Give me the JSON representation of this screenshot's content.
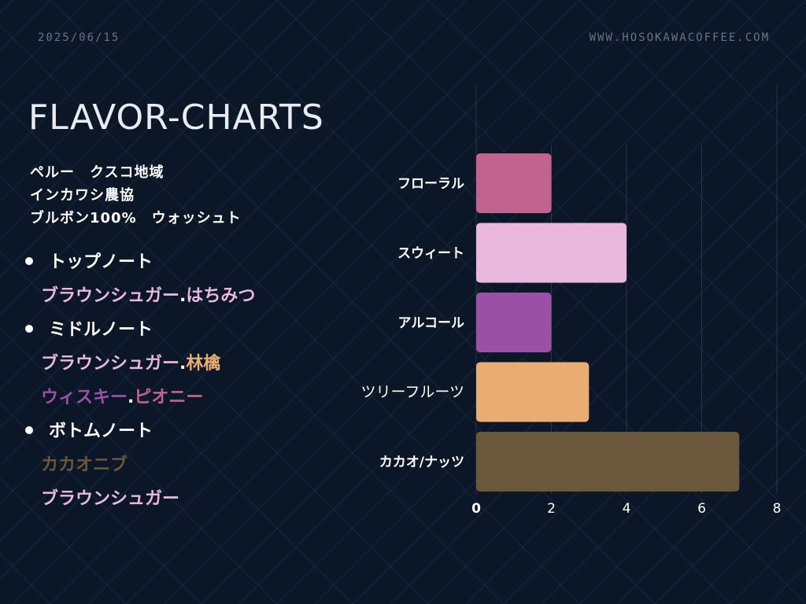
{
  "header": {
    "date": "2025/06/15",
    "site": "WWW.HOSOKAWACOFFEE.COM"
  },
  "title": "FLAVOR-CHARTS",
  "info": {
    "line1": "ペルー　クスコ地域",
    "line2": "インカワシ農協",
    "line3": "ブルボン100%　ウォッシュト"
  },
  "notes": {
    "top_heading": "トップノート",
    "top_items": [
      {
        "text": "ブラウンシュガー",
        "color": "#e9b8dc"
      },
      {
        "text": "はちみつ",
        "color": "#e9b8dc"
      }
    ],
    "middle_heading": "ミドルノート",
    "middle_items_1": [
      {
        "text": "ブラウンシュガー",
        "color": "#e9b8dc"
      },
      {
        "text": "林檎",
        "color": "#e9ad74"
      }
    ],
    "middle_items_2": [
      {
        "text": "ウィスキー",
        "color": "#9a50a5"
      },
      {
        "text": "ピオニー",
        "color": "#c2628e"
      }
    ],
    "bottom_heading": "ボトムノート",
    "bottom_items_1": [
      {
        "text": "カカオニブ",
        "color": "#6b573b"
      }
    ],
    "bottom_items_2": [
      {
        "text": "ブラウンシュガー",
        "color": "#e9b8dc"
      }
    ],
    "separator": "."
  },
  "chart_data": {
    "type": "bar",
    "orientation": "horizontal",
    "categories": [
      "フローラル",
      "スウィート",
      "アルコール",
      "ツリーフルーツ",
      "カカオ/ナッツ"
    ],
    "values": [
      2,
      4,
      2,
      3,
      7
    ],
    "colors": [
      "#c2628e",
      "#e9b8dc",
      "#9a50a5",
      "#e9ad74",
      "#6b573b"
    ],
    "xlim": [
      0,
      8
    ],
    "xticks": [
      "0",
      "2",
      "4",
      "6",
      "8"
    ],
    "title": "",
    "xlabel": "",
    "ylabel": "",
    "grid": true
  }
}
